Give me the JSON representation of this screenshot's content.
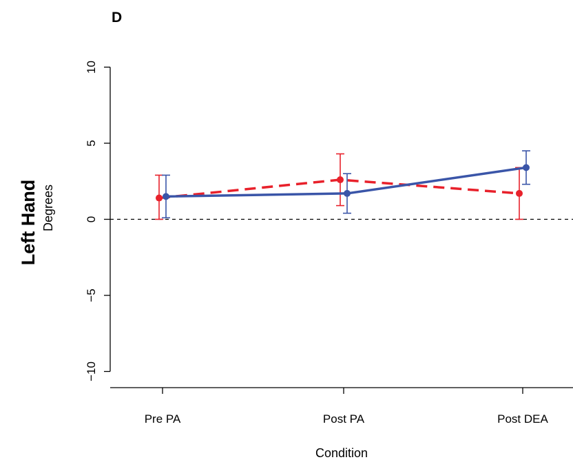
{
  "panel_label": "D",
  "row_label": "Left Hand",
  "chart_data": {
    "type": "line",
    "title": "",
    "xlabel": "Condition",
    "ylabel": "Degrees",
    "categories": [
      "Pre PA",
      "Post PA",
      "Post DEA"
    ],
    "ylim": [
      -11,
      11
    ],
    "yticks": [
      -10,
      -5,
      0,
      5,
      10
    ],
    "reference_line": 0,
    "grid": false,
    "legend": "none",
    "series": [
      {
        "color": "#e8212b",
        "style": "dashed",
        "values": [
          1.4,
          2.6,
          1.7
        ],
        "error_low": [
          0.0,
          0.9,
          0.0
        ],
        "error_high": [
          2.9,
          4.3,
          3.4
        ]
      },
      {
        "color": "#3a55a8",
        "style": "solid",
        "values": [
          1.5,
          1.7,
          3.4
        ],
        "error_low": [
          0.1,
          0.4,
          2.3
        ],
        "error_high": [
          2.9,
          3.0,
          4.5
        ]
      }
    ]
  }
}
